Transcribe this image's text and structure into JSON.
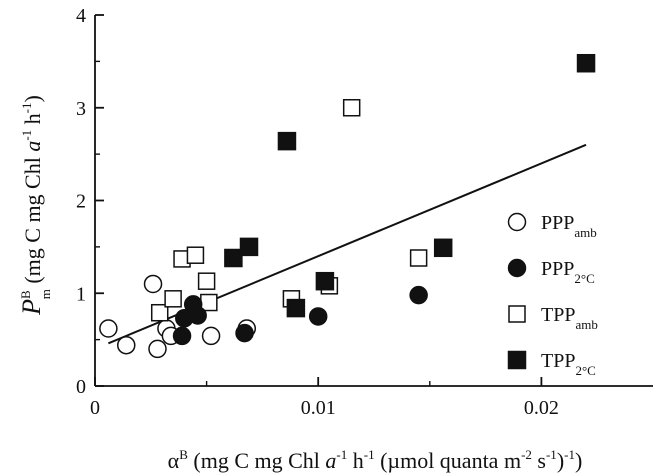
{
  "chart_data": {
    "type": "scatter",
    "xlim": [
      0,
      0.025
    ],
    "ylim": [
      0,
      4
    ],
    "x_ticks": [
      "0",
      "0.01",
      "0.02"
    ],
    "y_ticks": [
      "0",
      "1",
      "2",
      "3",
      "4"
    ],
    "xlabel": {
      "symbol": "α",
      "symbol_sup": "B",
      "part1": " (mg C mg Chl ",
      "italic": "a",
      "sup1": "-1",
      "part2": " h",
      "sup2": "-1",
      "part3": " (µmol quanta m",
      "sup3": "-2",
      "part4": " s",
      "sup4": "-1",
      "part5": ")",
      "sup5": "-1",
      "part6": ")"
    },
    "ylabel": {
      "symbol": "P",
      "symbol_sup": "B",
      "symbol_sub": "m",
      "part1": " (mg C mg Chl ",
      "italic": "a",
      "sup1": "-1",
      "part2": " h",
      "sup2": "-1",
      "part3": ")"
    },
    "series": [
      {
        "name": "PPPamb",
        "label_main": "PPP",
        "label_sub": "amb",
        "marker": "circle-open",
        "points": [
          [
            0.0006,
            0.62
          ],
          [
            0.0014,
            0.44
          ],
          [
            0.0026,
            1.1
          ],
          [
            0.0028,
            0.4
          ],
          [
            0.0032,
            0.62
          ],
          [
            0.0034,
            0.54
          ],
          [
            0.0045,
            0.78
          ],
          [
            0.0052,
            0.54
          ],
          [
            0.0068,
            0.62
          ]
        ]
      },
      {
        "name": "PPP2°C",
        "label_main": "PPP",
        "label_sub": "2°C",
        "marker": "circle-filled",
        "points": [
          [
            0.0039,
            0.54
          ],
          [
            0.004,
            0.73
          ],
          [
            0.0044,
            0.88
          ],
          [
            0.0046,
            0.76
          ],
          [
            0.0067,
            0.57
          ],
          [
            0.01,
            0.75
          ],
          [
            0.0145,
            0.98
          ]
        ]
      },
      {
        "name": "TPPamb",
        "label_main": "TPP",
        "label_sub": "amb",
        "marker": "square-open",
        "points": [
          [
            0.0029,
            0.79
          ],
          [
            0.0035,
            0.94
          ],
          [
            0.0039,
            1.37
          ],
          [
            0.0045,
            1.41
          ],
          [
            0.005,
            1.13
          ],
          [
            0.0051,
            0.9
          ],
          [
            0.0088,
            0.94
          ],
          [
            0.0105,
            1.08
          ],
          [
            0.0115,
            3.0
          ],
          [
            0.0145,
            1.38
          ]
        ]
      },
      {
        "name": "TPP2°C",
        "label_main": "TPP",
        "label_sub": "2°C",
        "marker": "square-filled",
        "points": [
          [
            0.0062,
            1.38
          ],
          [
            0.0069,
            1.5
          ],
          [
            0.0086,
            2.64
          ],
          [
            0.009,
            0.84
          ],
          [
            0.0103,
            1.13
          ],
          [
            0.0156,
            1.49
          ],
          [
            0.022,
            3.48
          ]
        ]
      }
    ],
    "regression_line": {
      "x": [
        0.0006,
        0.022
      ],
      "y": [
        0.46,
        2.6
      ]
    },
    "legend_position": "right",
    "grid": false
  }
}
